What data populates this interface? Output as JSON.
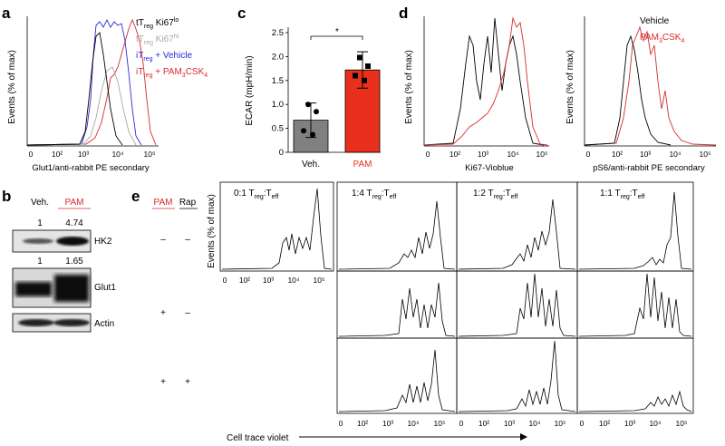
{
  "panels": {
    "a": {
      "label": "a",
      "ylabel": "Events (% of max)",
      "xlabel": "Glut1/anti-rabbit PE secondary",
      "ticks": [
        "0",
        "10²",
        "10³",
        "10⁴",
        "10⁵"
      ],
      "legend": [
        {
          "base": "tT",
          "sub": "reg",
          "rest": " Ki67",
          "sup": "lo",
          "color": "#000000"
        },
        {
          "base": "tT",
          "sub": "reg",
          "rest": " Ki67",
          "sup": "hi",
          "color": "#a8a8a8"
        },
        {
          "base": "iT",
          "sub": "reg",
          "rest": " + Vehicle",
          "sup": "",
          "color": "#2b2bd6"
        },
        {
          "base": "iT",
          "sub": "reg",
          "rest": " + PAM",
          "sup": "",
          "sub2": "3",
          "rest2": "CSK",
          "sub3": "4",
          "color": "#d62b2b"
        }
      ]
    },
    "b": {
      "label": "b",
      "lanes": [
        "Veh.",
        "PAM"
      ],
      "hk2_values": [
        "1",
        "4.74"
      ],
      "glut1_values": [
        "1",
        "1.65"
      ],
      "bands": [
        "HK2",
        "Glut1",
        "Actin"
      ]
    },
    "c": {
      "label": "c",
      "ylabel": "ECAR (mpH/min)",
      "sig": "*",
      "yticks": [
        "0",
        "0.5",
        "1.0",
        "1.5",
        "2.0",
        "2.5"
      ]
    },
    "d": {
      "label": "d",
      "ylabel": "Events (% of max)",
      "xlabel1": "Ki67-Vioblue",
      "xlabel2": "pS6/anti-rabbit PE secondary",
      "ticks": [
        "0",
        "10²",
        "10³",
        "10⁴",
        "10⁵"
      ],
      "legend_vehicle": "Vehicle",
      "legend_pam_a": "PAM",
      "legend_pam_sub": "3",
      "legend_pam_b": "CSK",
      "legend_pam_sub2": "4"
    },
    "e": {
      "label": "e",
      "col_pam": "PAM",
      "col_rap": "Rap",
      "rows": [
        [
          "–",
          "–"
        ],
        [
          "+",
          "–"
        ],
        [
          "+",
          "+"
        ]
      ],
      "ylabel": "Events (% of max)",
      "xlabel": "Cell trace violet",
      "ticks": [
        "0",
        "10²",
        "10³",
        "10⁴",
        "10⁵"
      ],
      "columns": [
        {
          "ratio": "0:1",
          "sub1": "reg",
          "sub2": "eff"
        },
        {
          "ratio": "1:4",
          "sub1": "reg",
          "sub2": "eff"
        },
        {
          "ratio": "1:2",
          "sub1": "reg",
          "sub2": "eff"
        },
        {
          "ratio": "1:1",
          "sub1": "reg",
          "sub2": "eff"
        }
      ],
      "ratio_t": "T",
      "ratio_sep": ":T"
    }
  },
  "chart_data": [
    {
      "type": "bar",
      "panel": "c",
      "categories": [
        "Veh.",
        "PAM"
      ],
      "values": [
        0.67,
        1.72
      ],
      "errors": [
        0.36,
        0.38
      ],
      "points": [
        [
          1.0,
          0.85,
          0.45,
          0.37
        ],
        [
          1.98,
          1.8,
          1.6,
          1.5
        ]
      ],
      "ylabel": "ECAR (mpH/min)",
      "ylim": [
        0,
        2.5
      ],
      "colors": [
        "#808080",
        "#e8301c"
      ]
    }
  ]
}
